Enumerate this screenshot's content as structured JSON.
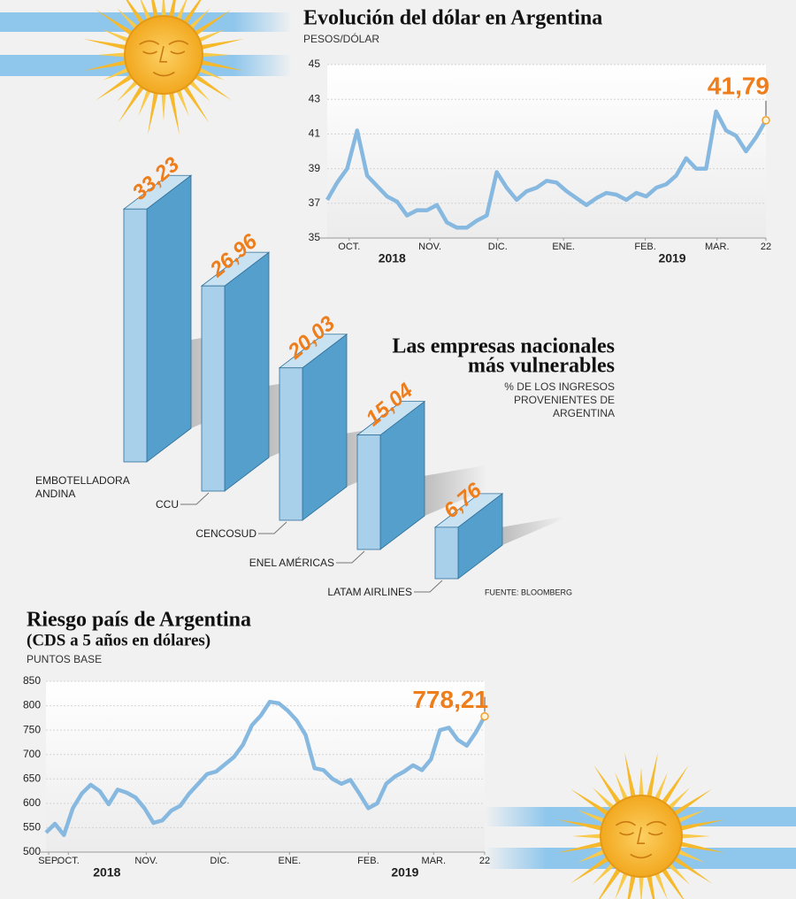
{
  "chart_data": [
    {
      "type": "line",
      "title": "Evolución del dólar en Argentina",
      "subtitle": "PESOS/DÓLAR",
      "x": [
        0,
        1,
        2,
        3,
        4,
        5,
        6,
        7,
        8,
        9,
        10,
        11,
        12,
        13,
        14,
        15,
        16,
        17,
        18,
        19,
        20,
        21,
        22,
        23,
        24,
        25,
        26,
        27,
        28,
        29,
        30,
        31,
        32,
        33,
        34,
        35,
        36,
        37,
        38,
        39,
        40,
        41,
        42,
        43,
        44
      ],
      "values": [
        37.2,
        38.2,
        39.0,
        41.2,
        38.6,
        38.0,
        37.4,
        37.1,
        36.3,
        36.6,
        36.6,
        36.9,
        35.9,
        35.6,
        35.6,
        36.0,
        36.3,
        38.8,
        37.9,
        37.2,
        37.7,
        37.9,
        38.3,
        38.2,
        37.7,
        37.3,
        36.9,
        37.3,
        37.6,
        37.5,
        37.2,
        37.6,
        37.4,
        37.9,
        38.1,
        38.6,
        39.6,
        39.0,
        39.0,
        42.3,
        41.2,
        40.9,
        40.0,
        40.8,
        41.79
      ],
      "color": "#86b8e0",
      "annotation": "41,79",
      "xlim": [
        0,
        44
      ],
      "xticks": [
        {
          "value": 2.2,
          "label": "OCT."
        },
        {
          "value": 10.3,
          "label": "NOV."
        },
        {
          "value": 17.1,
          "label": "DIC."
        },
        {
          "value": 23.7,
          "label": "ENE."
        },
        {
          "value": 31.9,
          "label": "FEB."
        },
        {
          "value": 39.1,
          "label": "MAR."
        },
        {
          "value": 44,
          "label": "22"
        }
      ],
      "year_labels": [
        {
          "value": 6.5,
          "label": "2018"
        },
        {
          "value": 34.6,
          "label": "2019"
        }
      ],
      "ylim": [
        35,
        45
      ],
      "yticks": [
        35,
        37,
        39,
        41,
        43,
        45
      ],
      "grid": true
    },
    {
      "type": "bar3d",
      "title_lines": [
        "Las empresas nacionales",
        "más vulnerables"
      ],
      "subtitle_lines": [
        "% DE LOS INGRESOS",
        "PROVENIENTES DE",
        "ARGENTINA"
      ],
      "categories": [
        "EMBOTELLADORA ANDINA",
        "CCU",
        "CENCOSUD",
        "ENEL AMÉRICAS",
        "LATAM AIRLINES"
      ],
      "values": [
        33.23,
        26.96,
        20.03,
        15.04,
        6.76
      ],
      "value_labels": [
        "33,23",
        "26,96",
        "20,03",
        "15,04",
        "6,76"
      ],
      "color": "#549fcb",
      "source": "FUENTE: BLOOMBERG"
    },
    {
      "type": "line",
      "title": "Riesgo país de Argentina",
      "subtitle": "(CDS a 5 años en dólares)",
      "unit": "PUNTOS BASE",
      "x": [
        0,
        1,
        2,
        3,
        4,
        5,
        6,
        7,
        8,
        9,
        10,
        11,
        12,
        13,
        14,
        15,
        16,
        17,
        18,
        19,
        20,
        21,
        22,
        23,
        24,
        25,
        26,
        27,
        28,
        29,
        30,
        31,
        32,
        33,
        34,
        35,
        36,
        37,
        38,
        39,
        40,
        41,
        42,
        43,
        44,
        45,
        46,
        47,
        48,
        49
      ],
      "values": [
        540,
        558,
        535,
        590,
        620,
        638,
        625,
        598,
        628,
        622,
        612,
        590,
        560,
        565,
        585,
        595,
        620,
        640,
        660,
        665,
        680,
        695,
        720,
        760,
        780,
        808,
        805,
        790,
        770,
        740,
        672,
        668,
        650,
        640,
        648,
        620,
        590,
        600,
        640,
        655,
        665,
        678,
        668,
        690,
        750,
        755,
        730,
        718,
        745,
        778.21
      ],
      "color": "#86b8e0",
      "annotation": "778,21",
      "xlim": [
        0,
        49
      ],
      "xticks": [
        {
          "value": 0.3,
          "label": "SEP."
        },
        {
          "value": 2.5,
          "label": "OCT."
        },
        {
          "value": 11.2,
          "label": "NOV."
        },
        {
          "value": 19.4,
          "label": "DIC."
        },
        {
          "value": 27.2,
          "label": "ENE."
        },
        {
          "value": 36,
          "label": "FEB."
        },
        {
          "value": 43.3,
          "label": "MAR."
        },
        {
          "value": 49,
          "label": "22"
        }
      ],
      "year_labels": [
        {
          "value": 6.8,
          "label": "2018"
        },
        {
          "value": 40.1,
          "label": "2019"
        }
      ],
      "ylim": [
        500,
        850
      ],
      "yticks": [
        500,
        550,
        600,
        650,
        700,
        750,
        800,
        850
      ],
      "grid": true
    }
  ]
}
